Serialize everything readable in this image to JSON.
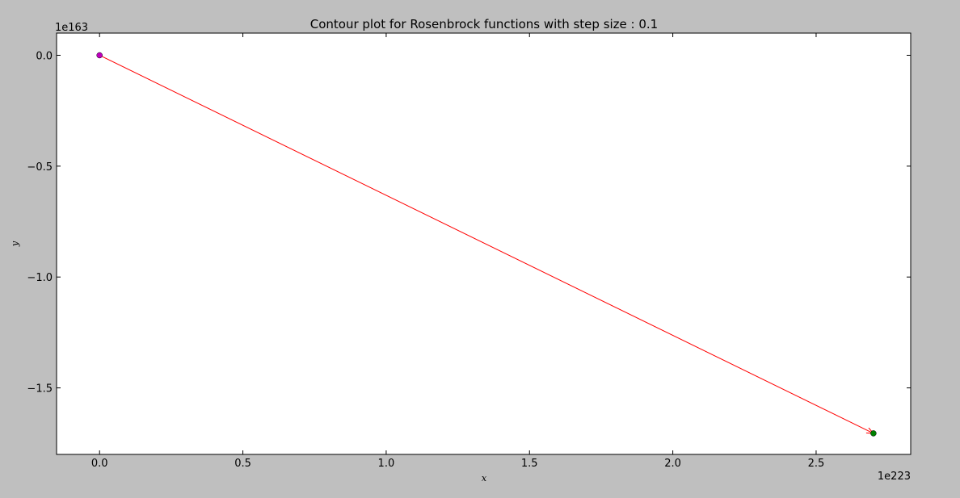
{
  "chart_data": {
    "type": "line",
    "title": "Contour plot for Rosenbrock functions with step size : 0.1",
    "xlabel": "x",
    "ylabel": "y",
    "x_offset_label": "1e223",
    "y_offset_label": "1e163",
    "xlim": [
      -0.15,
      2.83
    ],
    "ylim": [
      -1.8,
      0.1
    ],
    "xticks": [
      0.0,
      0.5,
      1.0,
      1.5,
      2.0,
      2.5
    ],
    "xtick_labels": [
      "0.0",
      "0.5",
      "1.0",
      "1.5",
      "2.0",
      "2.5"
    ],
    "yticks": [
      0.0,
      -0.5,
      -1.0,
      -1.5
    ],
    "ytick_labels": [
      "0.0",
      "−0.5",
      "−1.0",
      "−1.5"
    ],
    "grid": false,
    "series": [
      {
        "x": [
          0.0,
          2.7
        ],
        "y": [
          0.0,
          -1.705
        ],
        "color": "#ff0000",
        "style": "arrow"
      }
    ],
    "markers": [
      {
        "x": 0.0,
        "y": 0.0,
        "color": "#bf00bf",
        "role": "start"
      },
      {
        "x": 2.7,
        "y": -1.705,
        "color": "#008000",
        "role": "end"
      }
    ]
  },
  "colors": {
    "figure_bg": "#bfbfbf",
    "axes_bg": "#ffffff",
    "path": "#ff0000",
    "start": "#bf00bf",
    "end": "#008000"
  }
}
